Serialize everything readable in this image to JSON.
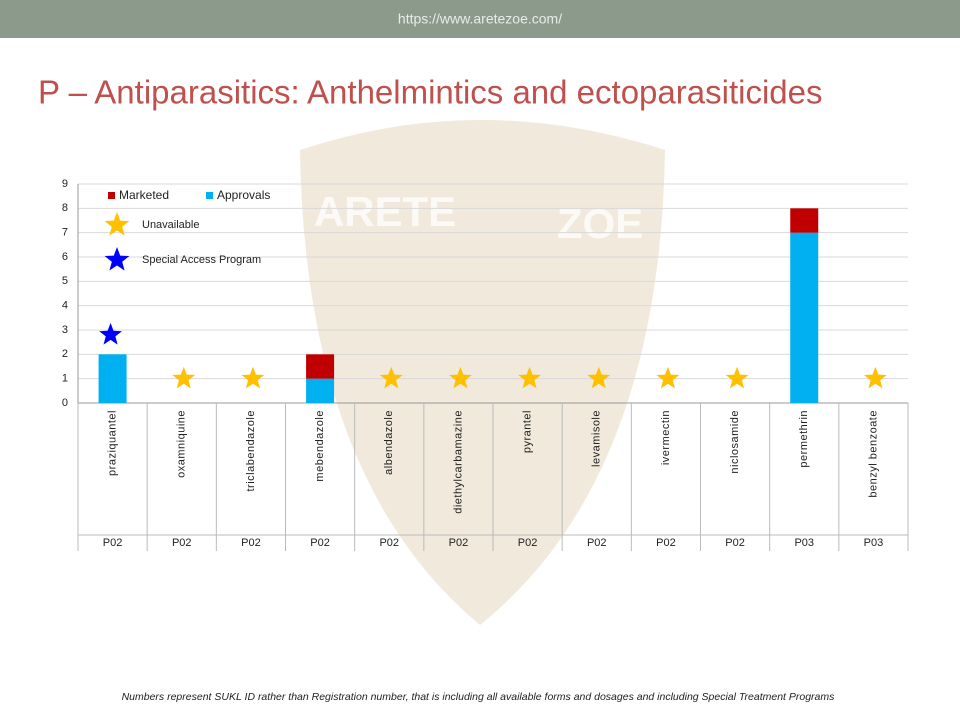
{
  "header": {
    "url": "https://www.aretezoe.com/"
  },
  "watermark": [
    "ARETE",
    "ZOE"
  ],
  "footnote": "Numbers represent SUKL ID rather than Registration number, that is including all available forms and dosages and including Special Treatment Programs",
  "chart_data": {
    "type": "bar",
    "stacked": true,
    "title": "P – Antiparasitics: Anthelmintics and ectoparasiticides",
    "categories": [
      "praziquantel",
      "oxamniquine",
      "triclabendazole",
      "mebendazole",
      "albendazole",
      "diethylcarbamazine",
      "pyrantel",
      "levamisole",
      "ivermectin",
      "niclosamide",
      "permethrin",
      "benzyl benzoate"
    ],
    "groups": [
      "P02",
      "P02",
      "P02",
      "P02",
      "P02",
      "P02",
      "P02",
      "P02",
      "P02",
      "P02",
      "P03",
      "P03"
    ],
    "series": [
      {
        "name": "Marketed",
        "color": "#c00000",
        "values": [
          0,
          0,
          0,
          1,
          0,
          0,
          0,
          0,
          0,
          0,
          1,
          0
        ]
      },
      {
        "name": "Approvals",
        "color": "#00b0f0",
        "values": [
          2,
          0,
          0,
          1,
          0,
          0,
          0,
          0,
          0,
          0,
          7,
          0
        ]
      },
      {
        "name": "Unavailable",
        "color": "#ffc000",
        "marker": "star",
        "values": [
          null,
          1,
          1,
          null,
          1,
          1,
          1,
          1,
          1,
          1,
          null,
          1
        ]
      },
      {
        "name": "Special Access Program",
        "color": "#0000ff",
        "marker": "star",
        "values": [
          2.8,
          null,
          null,
          null,
          null,
          null,
          null,
          null,
          null,
          null,
          null,
          null
        ]
      }
    ],
    "ylim": [
      0,
      9
    ],
    "yticks": [
      0,
      1,
      2,
      3,
      4,
      5,
      6,
      7,
      8,
      9
    ],
    "grid": true
  }
}
